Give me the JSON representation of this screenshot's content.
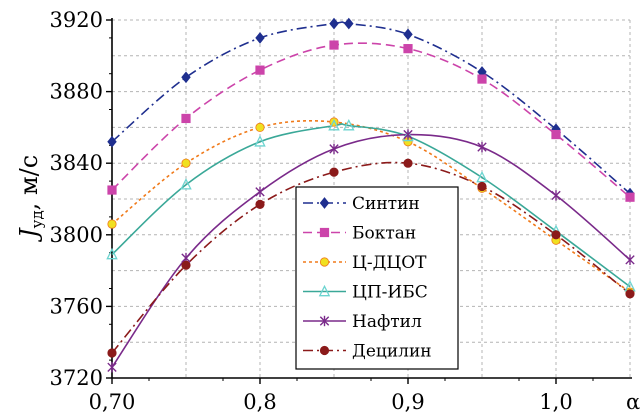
{
  "chart_data": {
    "type": "line",
    "xlabel": "α",
    "ylabel_main": "J",
    "ylabel_sub": "уд",
    "ylabel_unit": ", м/с",
    "xlim": [
      0.7,
      1.05
    ],
    "ylim": [
      3720,
      3920
    ],
    "x_ticks": [
      0.7,
      0.8,
      0.9,
      1.0
    ],
    "x_tick_labels": [
      "0,70",
      "0,8",
      "0,9",
      "1,0"
    ],
    "y_ticks": [
      3720,
      3760,
      3800,
      3840,
      3880,
      3920
    ],
    "y_tick_labels": [
      "3720",
      "3760",
      "3800",
      "3840",
      "3880",
      "3920"
    ],
    "grid": true,
    "legend_position": "center-right",
    "series": [
      {
        "name": "Синтин",
        "color": "#1f2f8f",
        "marker": "diamond",
        "dash": "10,4,2,4",
        "x": [
          0.7,
          0.75,
          0.8,
          0.85,
          0.86,
          0.9,
          0.95,
          1.0,
          1.05
        ],
        "y": [
          3852,
          3888,
          3910,
          3918,
          3918,
          3912,
          3891,
          3859,
          3823
        ]
      },
      {
        "name": "Боктан",
        "color": "#cc44aa",
        "marker": "square",
        "dash": "9,5",
        "x": [
          0.7,
          0.75,
          0.8,
          0.85,
          0.9,
          0.95,
          1.0,
          1.05
        ],
        "y": [
          3825,
          3865,
          3892,
          3906,
          3904,
          3887,
          3856,
          3821
        ]
      },
      {
        "name": "Ц-ДЦОТ",
        "color": "#f07a1a",
        "marker": "circle",
        "markerColor": "#f0e020",
        "dash": "3,3",
        "x": [
          0.7,
          0.75,
          0.8,
          0.85,
          0.9,
          0.95,
          1.0,
          1.05
        ],
        "y": [
          3806,
          3840,
          3860,
          3863,
          3852,
          3826,
          3797,
          3768
        ]
      },
      {
        "name": "ЦП-ИБС",
        "color": "#3aa898",
        "marker": "triangle",
        "markerColor": "#6cd4d0",
        "dash": "",
        "x": [
          0.7,
          0.75,
          0.8,
          0.85,
          0.86,
          0.9,
          0.95,
          1.0,
          1.05
        ],
        "y": [
          3789,
          3828,
          3852,
          3861,
          3861,
          3855,
          3832,
          3802,
          3771
        ]
      },
      {
        "name": "Нафтил",
        "color": "#7a2a8a",
        "marker": "star",
        "dash": "",
        "x": [
          0.7,
          0.75,
          0.8,
          0.85,
          0.9,
          0.95,
          1.0,
          1.05
        ],
        "y": [
          3726,
          3787,
          3824,
          3848,
          3856,
          3849,
          3822,
          3786
        ]
      },
      {
        "name": "Децилин",
        "color": "#8b1a1a",
        "marker": "circle",
        "dash": "10,4,2,4",
        "x": [
          0.7,
          0.75,
          0.8,
          0.85,
          0.9,
          0.95,
          1.0,
          1.05
        ],
        "y": [
          3734,
          3783,
          3817,
          3835,
          3840,
          3827,
          3800,
          3767
        ]
      }
    ]
  }
}
